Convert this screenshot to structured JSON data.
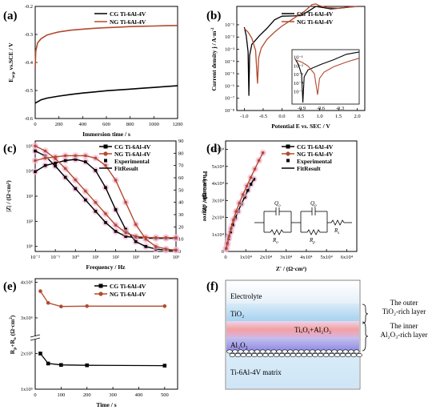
{
  "chart_data": [
    {
      "panel": "(a)",
      "type": "line",
      "xlabel": "Immersion time / s",
      "ylabel": "E_oc vs.SCE / V",
      "xlim": [
        0,
        1200
      ],
      "ylim": [
        -0.6,
        -0.2
      ],
      "xticks": [
        "0",
        "200",
        "400",
        "600",
        "800",
        "1000",
        "1200"
      ],
      "yticks": [
        "-0.2",
        "-0.3",
        "-0.4",
        "-0.5",
        "-0.6"
      ],
      "series": [
        {
          "name": "CG Ti-6Al-4V",
          "color": "#000000",
          "x": [
            0,
            50,
            100,
            200,
            300,
            400,
            500,
            600,
            700,
            800,
            900,
            1000,
            1100,
            1200
          ],
          "y": [
            -0.545,
            -0.533,
            -0.527,
            -0.52,
            -0.514,
            -0.509,
            -0.505,
            -0.501,
            -0.498,
            -0.495,
            -0.492,
            -0.489,
            -0.486,
            -0.483
          ]
        },
        {
          "name": "NG Ti-6Al-4V",
          "color": "#b24a2e",
          "x": [
            0,
            5,
            20,
            50,
            100,
            150,
            200,
            300,
            400,
            500,
            600,
            700,
            800,
            900,
            1000,
            1100,
            1200
          ],
          "y": [
            -0.42,
            -0.36,
            -0.33,
            -0.315,
            -0.302,
            -0.296,
            -0.291,
            -0.285,
            -0.281,
            -0.278,
            -0.276,
            -0.274,
            -0.272,
            -0.271,
            -0.27,
            -0.269,
            -0.268
          ]
        }
      ]
    },
    {
      "panel": "(b)",
      "type": "line",
      "xlabel": "Potential E vs. SEC / V",
      "ylabel": "Current density j / A·m⁻²",
      "xticks": [
        "-1.0",
        "-0.5",
        "0.0",
        "0.5",
        "1.0",
        "1.5",
        "2.0"
      ],
      "yticks": [
        "10⁻⁸",
        "10⁻⁷",
        "10⁻⁶",
        "10⁻⁵",
        "10⁻⁴",
        "10⁻³",
        "10⁻²",
        "10⁻¹"
      ],
      "inset": {
        "xticks": [
          "-0.9",
          "-0.6",
          "-0.3"
        ],
        "yticks": [
          "10⁻¹",
          "10⁻²",
          "10⁻³",
          "10⁻⁴",
          "10⁻⁵"
        ]
      },
      "series": [
        {
          "name": "CG Ti-6Al-4V",
          "color": "#000000",
          "x": [
            -1.0,
            -0.95,
            -0.9,
            -0.88,
            -0.86,
            -0.8,
            -0.6,
            -0.4,
            -0.2,
            0.0,
            0.3,
            0.5,
            0.7,
            0.9,
            1.1,
            1.3,
            1.5,
            1.8,
            2.0
          ],
          "log10_y": [
            -1.2,
            -1.9,
            -3.2,
            -6.8,
            -3.5,
            -2.6,
            -1.9,
            -1.3,
            -0.6,
            -0.3,
            -0.28,
            -0.25,
            0.1,
            0.5,
            0.4,
            0.3,
            0.35,
            0.45,
            0.5
          ]
        },
        {
          "name": "NG Ti-6Al-4V",
          "color": "#b24a2e",
          "x": [
            -1.0,
            -0.9,
            -0.8,
            -0.7,
            -0.65,
            -0.62,
            -0.55,
            -0.4,
            -0.2,
            0.0,
            0.2,
            0.4,
            0.6,
            0.8,
            0.9,
            1.0,
            1.2,
            1.5,
            1.8,
            2.0
          ],
          "log10_y": [
            -1.3,
            -1.6,
            -2.1,
            -3.1,
            -5.8,
            -3.7,
            -2.9,
            -2.2,
            -1.6,
            -1.1,
            -0.7,
            -0.3,
            0.1,
            0.65,
            0.7,
            0.55,
            0.4,
            0.35,
            0.45,
            0.5
          ]
        }
      ]
    },
    {
      "panel": "(c)",
      "type": "line",
      "xlabel": "Frequency / Hz",
      "ylabel": "|Z| / (Ω·cm²)",
      "y2label": "Phase angle/ degree",
      "xticks": [
        "10⁻²",
        "10⁻¹",
        "10⁰",
        "10¹",
        "10²",
        "10³",
        "10⁴",
        "10⁵"
      ],
      "yticks": [
        "10¹",
        "10²",
        "10³",
        "10⁴",
        "10⁵"
      ],
      "y2ticks": [
        "0",
        "10",
        "20",
        "30",
        "40",
        "50",
        "60",
        "70",
        "80",
        "90"
      ],
      "series": [
        {
          "name": "CG Ti-6Al-4V",
          "color": "#000000",
          "log10_f": [
            -2,
            -1.5,
            -1,
            -0.5,
            0,
            0.5,
            1,
            1.5,
            2,
            2.5,
            3,
            3.5,
            4,
            4.5,
            5
          ],
          "log10_Z": [
            4.8,
            4.6,
            4.2,
            3.75,
            3.3,
            2.85,
            2.4,
            1.95,
            1.6,
            1.4,
            1.35,
            1.33,
            1.32,
            1.32,
            1.32
          ],
          "phase": [
            65,
            70,
            72,
            74,
            75,
            73,
            66,
            52,
            34,
            18,
            8,
            4,
            2,
            1,
            1
          ]
        },
        {
          "name": "NG Ti-6Al-4V",
          "color": "#b24a2e",
          "log10_f": [
            -2,
            -1.5,
            -1,
            -0.5,
            0,
            0.5,
            1,
            1.5,
            2,
            2.5,
            3,
            3.5,
            4,
            4.5,
            5
          ],
          "log10_Z": [
            5.0,
            4.8,
            4.5,
            4.1,
            3.65,
            3.2,
            2.75,
            2.3,
            1.85,
            1.55,
            1.4,
            1.36,
            1.35,
            1.35,
            1.35
          ],
          "phase": [
            74,
            76,
            77,
            78,
            78,
            78,
            76,
            70,
            58,
            40,
            22,
            10,
            4,
            2,
            1
          ]
        }
      ],
      "legend_extra": [
        "Experimental",
        "FitResult"
      ]
    },
    {
      "panel": "(d)",
      "type": "scatter",
      "xlabel": "Z' / (Ω·cm²)",
      "ylabel": "-Z'' / (Ω·cm²)",
      "xticks": [
        "0",
        "1x10⁴",
        "2x10⁴",
        "3x10⁴",
        "4x10⁴",
        "5x10⁴",
        "6x10⁴"
      ],
      "yticks": [
        "0",
        "1x10⁴",
        "2x10⁴",
        "3x10⁴",
        "4x10⁴",
        "5x10⁴",
        "6x10⁴"
      ],
      "xlim": [
        0,
        65000
      ],
      "ylim": [
        0,
        65000
      ],
      "circuit_labels": [
        "Q_o",
        "Q_p",
        "R_o",
        "R_p",
        "R_s"
      ],
      "series": [
        {
          "name": "CG Ti-6Al-4V",
          "color": "#000000",
          "x": [
            300,
            800,
            1500,
            2500,
            3500,
            4800,
            6200,
            7800,
            9500,
            11000,
            12500,
            14000
          ],
          "y": [
            1500,
            4000,
            7500,
            11500,
            15500,
            19500,
            23500,
            28000,
            32000,
            36000,
            39500,
            42500
          ]
        },
        {
          "name": "NG Ti-6Al-4V",
          "color": "#b24a2e",
          "x": [
            300,
            900,
            1700,
            2700,
            3900,
            5200,
            6800,
            8600,
            10500,
            12500,
            14500,
            16500,
            18500
          ],
          "y": [
            1800,
            5000,
            9000,
            13500,
            18500,
            23500,
            28500,
            33500,
            38500,
            43500,
            48500,
            53500,
            58000
          ]
        }
      ],
      "legend_extra": [
        "Experimental",
        "FitResult"
      ]
    },
    {
      "panel": "(e)",
      "type": "line",
      "xlabel": "Time / s",
      "ylabel": "R_p+R_o (Ω·cm²)",
      "xticks": [
        "0",
        "100",
        "200",
        "300",
        "400",
        "500"
      ],
      "yticks": [
        "1x10⁵",
        "2x10⁵",
        "3x10⁶",
        "4x10⁶"
      ],
      "series": [
        {
          "name": "CG Ti-6Al-4V",
          "color": "#000000",
          "x": [
            20,
            50,
            100,
            200,
            500
          ],
          "y_display": [
            2.0,
            1.72,
            1.68,
            1.67,
            1.66
          ]
        },
        {
          "name": "NG Ti-6Al-4V",
          "color": "#b24a2e",
          "x": [
            20,
            50,
            100,
            200,
            500
          ],
          "y_display": [
            3.75,
            3.42,
            3.32,
            3.33,
            3.33
          ]
        }
      ]
    }
  ],
  "panels": {
    "a": "(a)",
    "b": "(b)",
    "c": "(c)",
    "d": "(d)",
    "e": "(e)",
    "f": "(f)"
  },
  "legend": {
    "cg": "CG Ti-6Al-4V",
    "ng": "NG Ti-6Al-4V",
    "experimental": "Experimental",
    "fit": "FitResult"
  },
  "axes": {
    "a_x": "Immersion time / s",
    "b_x": "Potential E vs. SEC / V",
    "b_y": "Current density j / A·m",
    "c_x": "Frequency / Hz",
    "c_y": "|Z| / (Ω·cm²)",
    "c_y2": "Phase angle/ degree",
    "d_x": "Z' / (Ω·cm²)",
    "d_y": "-Z'' / (Ω·cm²)",
    "e_x": "Time / s",
    "e_y": "R_p+R_o (Ω·cm²)"
  },
  "schematic": {
    "electrolyte": "Electrolyte",
    "tio2": "TiO₂",
    "mixed": "TiₓOᵧ+Al₂O₃",
    "al2o3": "Al₂O₃",
    "matrix": "Ti-6Al-4V matrix",
    "outer_1": "The outer",
    "outer_2": "TiO₂-rich layer",
    "inner_1": "The inner",
    "inner_2": "Al₂O₃-rich layer"
  }
}
